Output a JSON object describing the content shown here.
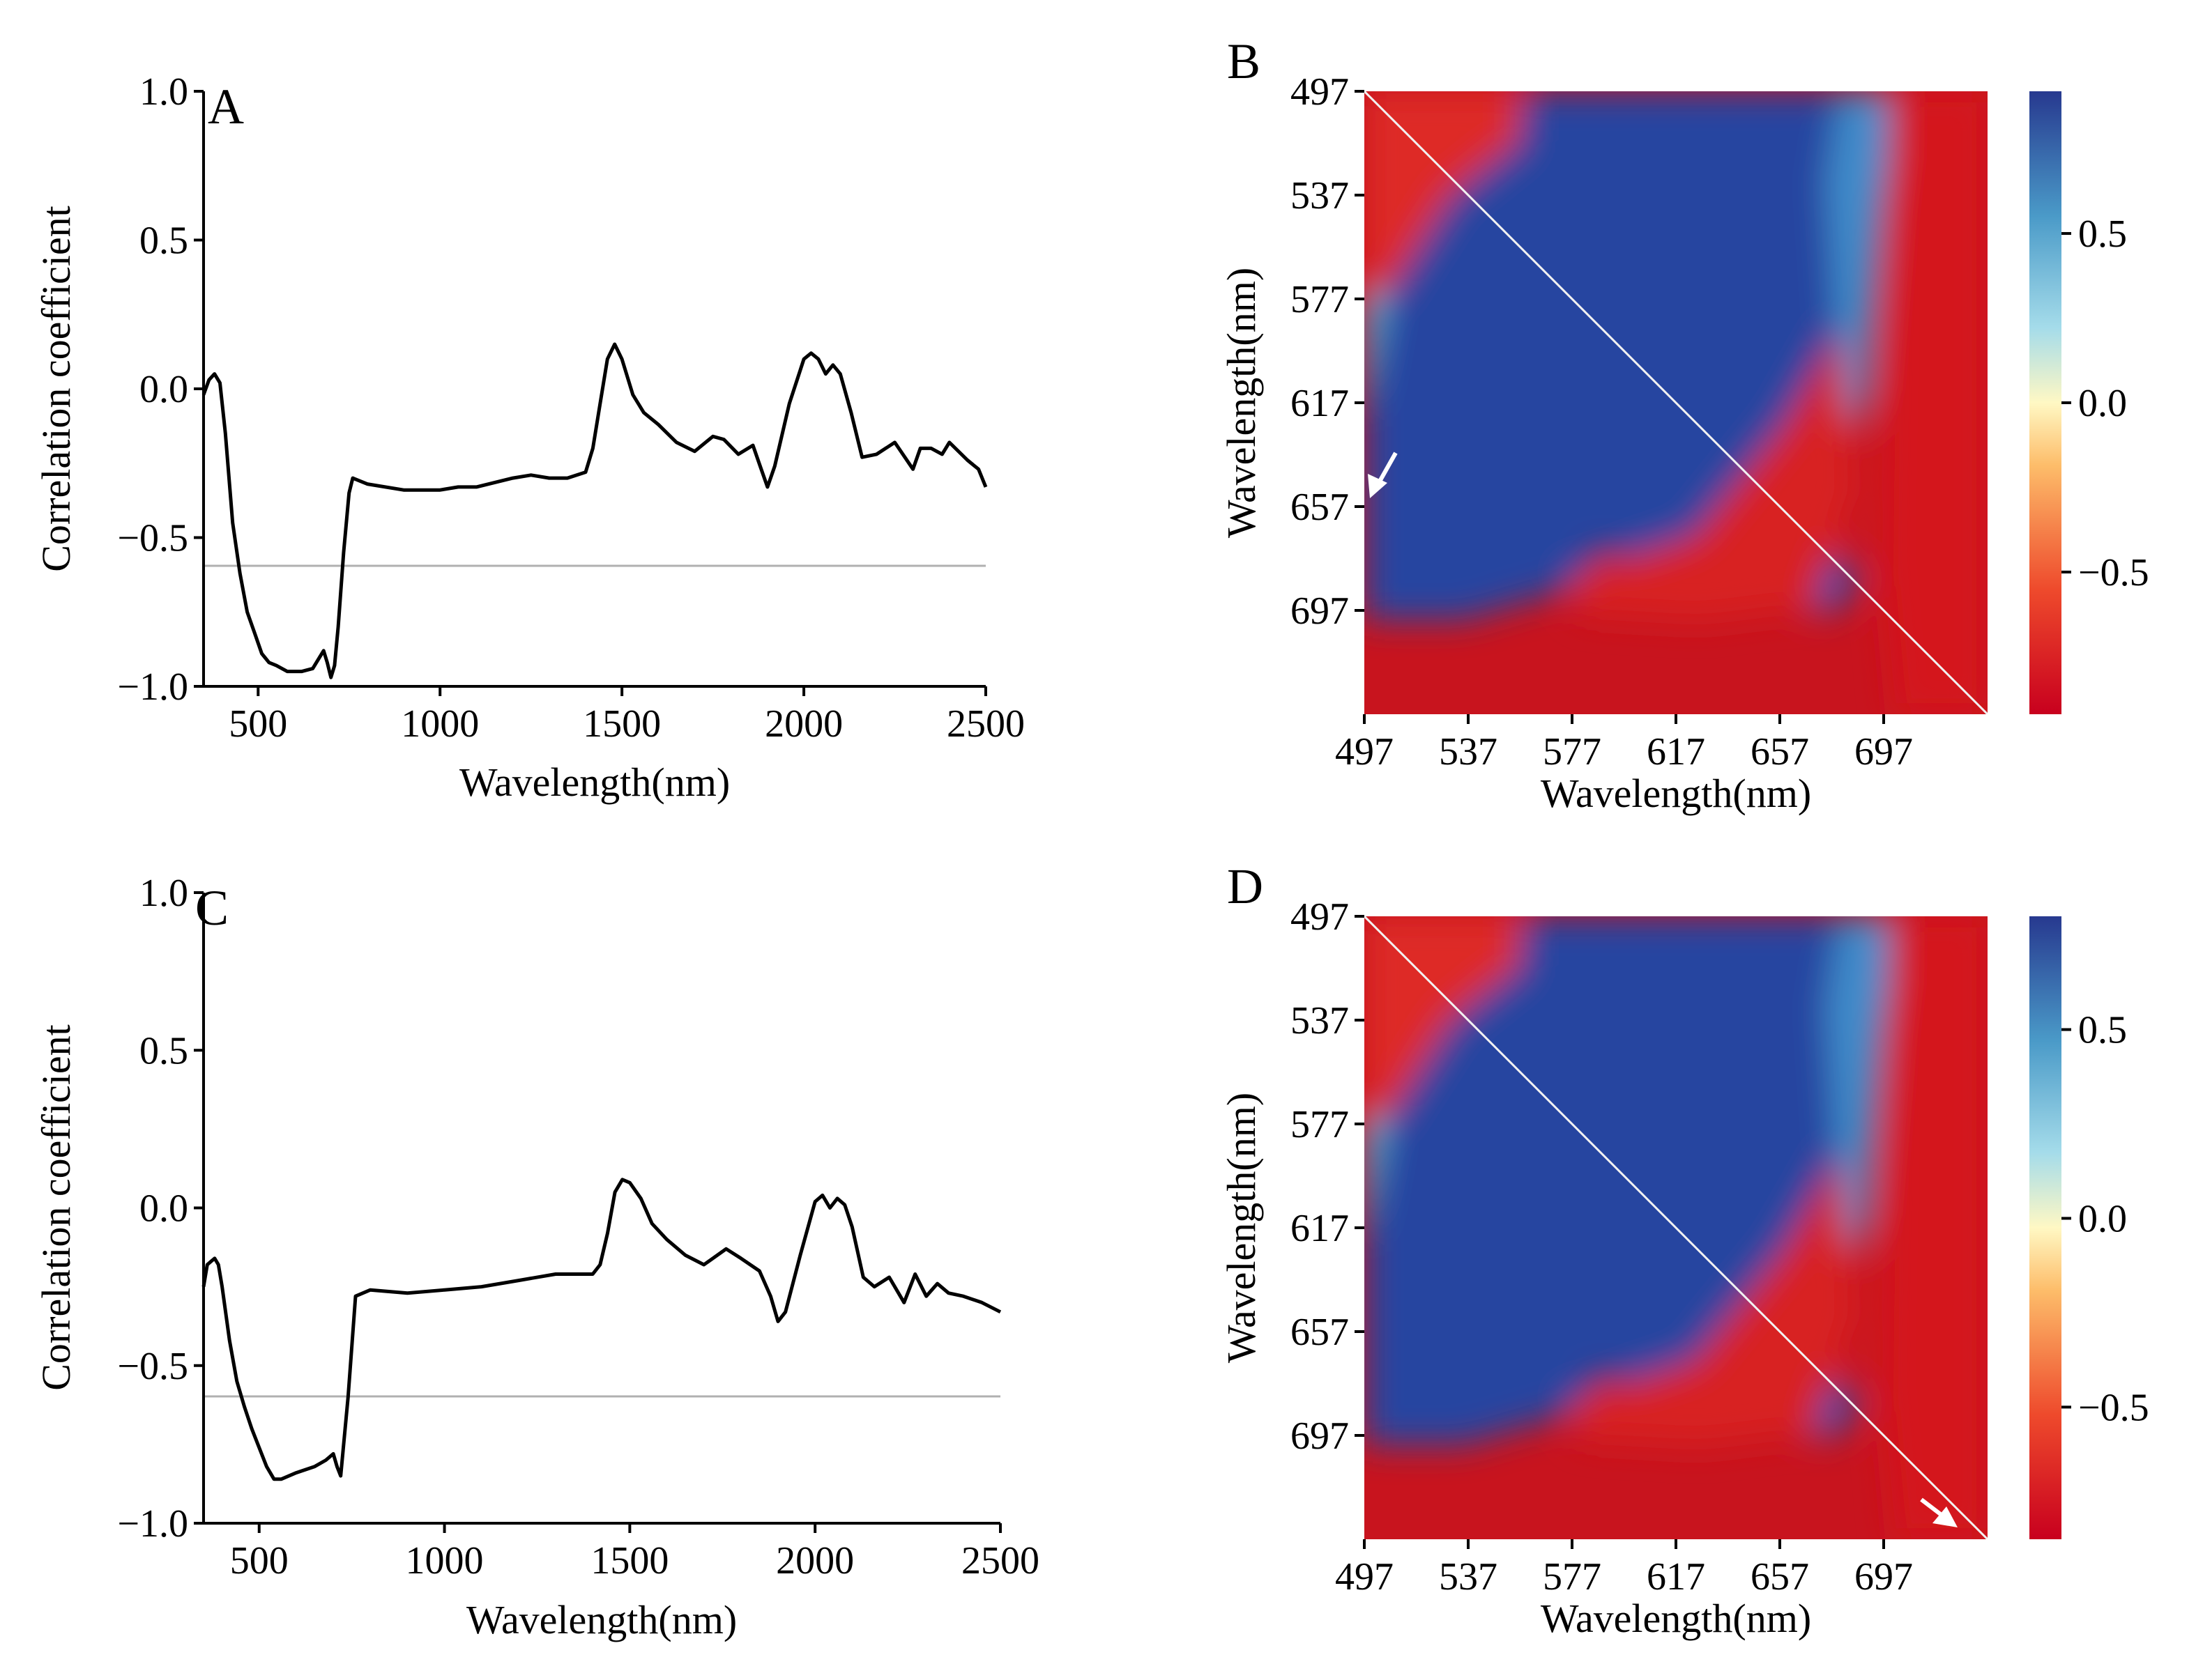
{
  "chart_data": [
    {
      "panel": "A",
      "type": "line",
      "xlabel": "Wavelength(nm)",
      "ylabel": "Correlation coefficient",
      "xlim": [
        350,
        2500
      ],
      "ylim": [
        -1.0,
        1.0
      ],
      "xticks": [
        500,
        1000,
        1500,
        2000,
        2500
      ],
      "xtick_labels": [
        "500",
        "1000",
        "1500",
        "2000",
        "2500"
      ],
      "yticks": [
        1.0,
        0.5,
        0.0,
        -0.5,
        -1.0
      ],
      "ytick_labels": [
        "1.0",
        "0.5",
        "0.0",
        "−0.5",
        "−1.0"
      ],
      "threshold": -0.6,
      "series": [
        {
          "name": "correlation",
          "x": [
            350,
            365,
            380,
            395,
            410,
            430,
            450,
            470,
            490,
            510,
            530,
            550,
            580,
            620,
            650,
            670,
            680,
            690,
            700,
            710,
            720,
            735,
            750,
            760,
            800,
            900,
            1000,
            1050,
            1100,
            1200,
            1250,
            1300,
            1350,
            1400,
            1420,
            1440,
            1460,
            1480,
            1500,
            1530,
            1560,
            1600,
            1650,
            1700,
            1750,
            1780,
            1820,
            1860,
            1880,
            1900,
            1920,
            1960,
            2000,
            2020,
            2040,
            2060,
            2080,
            2100,
            2130,
            2160,
            2200,
            2250,
            2300,
            2320,
            2350,
            2380,
            2400,
            2450,
            2480,
            2500
          ],
          "y": [
            -0.02,
            0.03,
            0.05,
            0.02,
            -0.15,
            -0.45,
            -0.62,
            -0.75,
            -0.82,
            -0.89,
            -0.92,
            -0.93,
            -0.95,
            -0.95,
            -0.94,
            -0.9,
            -0.88,
            -0.92,
            -0.97,
            -0.93,
            -0.8,
            -0.55,
            -0.35,
            -0.3,
            -0.32,
            -0.34,
            -0.34,
            -0.33,
            -0.33,
            -0.3,
            -0.29,
            -0.3,
            -0.3,
            -0.28,
            -0.2,
            -0.05,
            0.1,
            0.15,
            0.1,
            -0.02,
            -0.08,
            -0.12,
            -0.18,
            -0.21,
            -0.16,
            -0.17,
            -0.22,
            -0.19,
            -0.26,
            -0.33,
            -0.26,
            -0.05,
            0.1,
            0.12,
            0.1,
            0.05,
            0.08,
            0.05,
            -0.08,
            -0.23,
            -0.22,
            -0.18,
            -0.27,
            -0.2,
            -0.2,
            -0.22,
            -0.18,
            -0.24,
            -0.27,
            -0.33
          ]
        }
      ]
    },
    {
      "panel": "B",
      "type": "heatmap",
      "xlabel": "Wavelength(nm)",
      "ylabel": "Wavelength(nm)",
      "range": [
        497,
        737
      ],
      "ticks": [
        497,
        537,
        577,
        617,
        657,
        697
      ],
      "tick_labels": [
        "497",
        "537",
        "577",
        "617",
        "657",
        "697"
      ],
      "colorbar": {
        "range": [
          -0.92,
          0.92
        ],
        "ticks": [
          0.5,
          0.0,
          -0.5
        ],
        "tick_labels": [
          "0.5",
          "0.0",
          "−0.5"
        ]
      },
      "arrow": {
        "x": 503,
        "y": 648,
        "direction": "down-left"
      }
    },
    {
      "panel": "C",
      "type": "line",
      "xlabel": "Wavelength(nm)",
      "ylabel": "Correlation coefficient",
      "xlim": [
        350,
        2500
      ],
      "ylim": [
        -1.0,
        1.0
      ],
      "xticks": [
        500,
        1000,
        1500,
        2000,
        2500
      ],
      "xtick_labels": [
        "500",
        "1000",
        "1500",
        "2000",
        "2500"
      ],
      "yticks": [
        1.0,
        0.5,
        0.0,
        -0.5,
        -1.0
      ],
      "ytick_labels": [
        "1.0",
        "0.5",
        "0.0",
        "−0.5",
        "−1.0"
      ],
      "threshold": -0.6,
      "series": [
        {
          "name": "correlation",
          "x": [
            350,
            360,
            370,
            380,
            390,
            400,
            420,
            440,
            460,
            480,
            500,
            520,
            540,
            560,
            600,
            650,
            680,
            700,
            710,
            720,
            740,
            760,
            800,
            900,
            1000,
            1100,
            1200,
            1300,
            1350,
            1400,
            1420,
            1440,
            1460,
            1480,
            1500,
            1530,
            1560,
            1600,
            1650,
            1700,
            1760,
            1800,
            1850,
            1880,
            1900,
            1920,
            1960,
            2000,
            2020,
            2040,
            2060,
            2080,
            2100,
            2130,
            2160,
            2200,
            2240,
            2270,
            2300,
            2330,
            2360,
            2400,
            2450,
            2500
          ],
          "y": [
            -0.25,
            -0.18,
            -0.17,
            -0.16,
            -0.18,
            -0.25,
            -0.42,
            -0.55,
            -0.63,
            -0.7,
            -0.76,
            -0.82,
            -0.86,
            -0.86,
            -0.84,
            -0.82,
            -0.8,
            -0.78,
            -0.82,
            -0.85,
            -0.6,
            -0.28,
            -0.26,
            -0.27,
            -0.26,
            -0.25,
            -0.23,
            -0.21,
            -0.21,
            -0.21,
            -0.18,
            -0.08,
            0.05,
            0.09,
            0.08,
            0.03,
            -0.05,
            -0.1,
            -0.15,
            -0.18,
            -0.13,
            -0.16,
            -0.2,
            -0.28,
            -0.36,
            -0.33,
            -0.15,
            0.02,
            0.04,
            0.0,
            0.03,
            0.01,
            -0.06,
            -0.22,
            -0.25,
            -0.22,
            -0.3,
            -0.21,
            -0.28,
            -0.24,
            -0.27,
            -0.28,
            -0.3,
            -0.33
          ]
        }
      ]
    },
    {
      "panel": "D",
      "type": "heatmap",
      "xlabel": "Wavelength(nm)",
      "ylabel": "Wavelength(nm)",
      "range": [
        497,
        737
      ],
      "ticks": [
        497,
        537,
        577,
        617,
        657,
        697
      ],
      "tick_labels": [
        "497",
        "537",
        "577",
        "617",
        "657",
        "697"
      ],
      "colorbar": {
        "range": [
          -0.85,
          0.8
        ],
        "ticks": [
          0.5,
          0.0,
          -0.5
        ],
        "tick_labels": [
          "0.5",
          "0.0",
          "−0.5"
        ]
      },
      "arrow": {
        "x": 728,
        "y": 729,
        "direction": "down-right"
      }
    }
  ]
}
